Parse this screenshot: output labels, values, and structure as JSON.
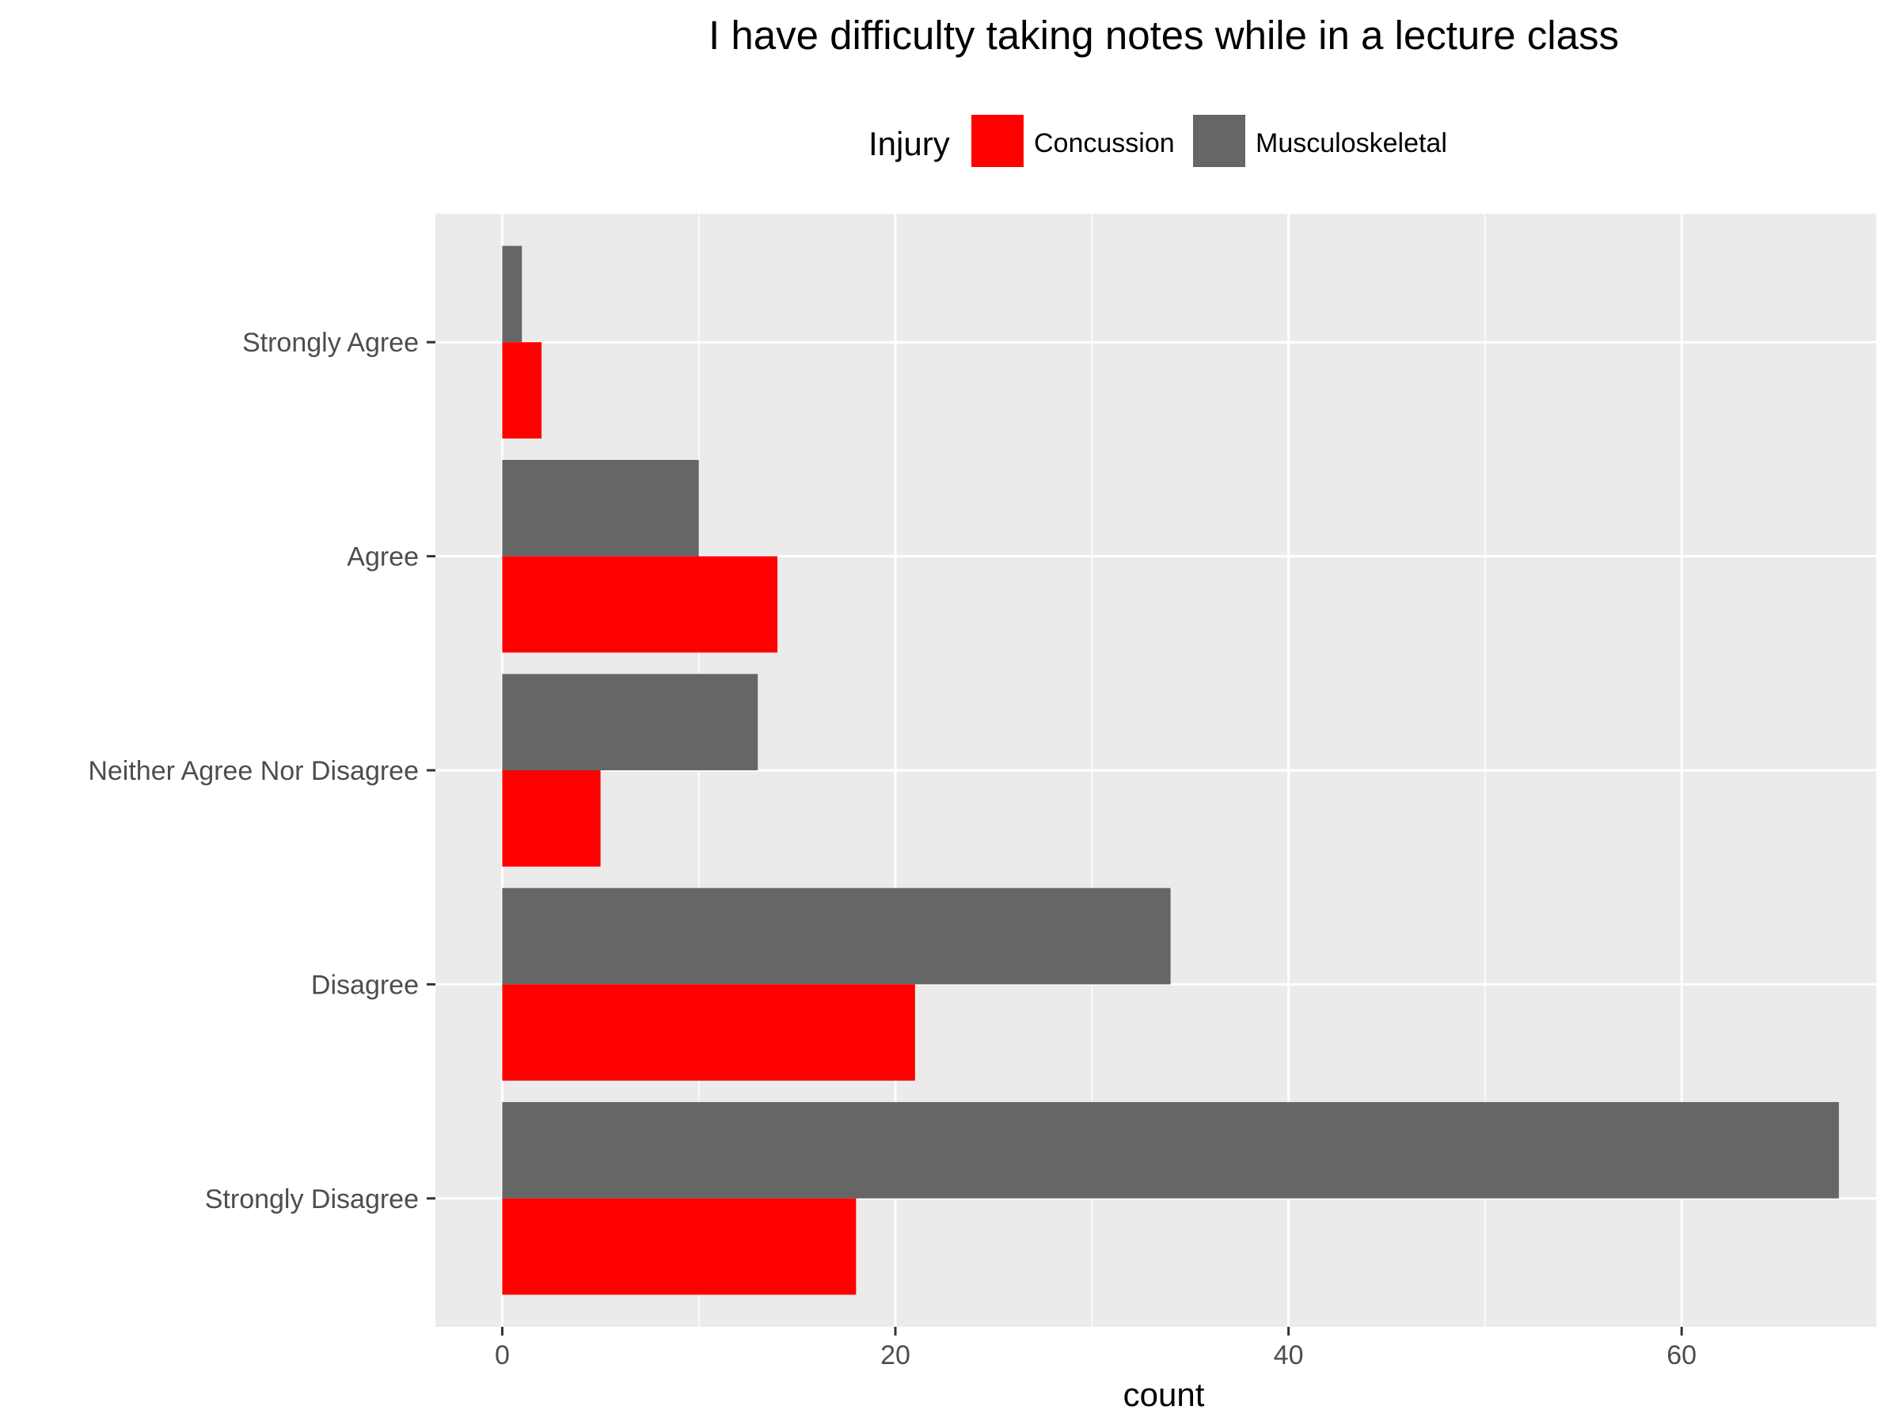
{
  "chart_data": {
    "type": "bar",
    "orientation": "horizontal",
    "title": "I have difficulty taking notes while in a lecture class",
    "xlabel": "count",
    "ylabel": "",
    "xlim": [
      -3.4,
      69.9
    ],
    "x_ticks": [
      0,
      20,
      40,
      60
    ],
    "grid": true,
    "legend": {
      "title": "Injury",
      "position": "top"
    },
    "categories": [
      "Strongly Agree",
      "Agree",
      "Neither Agree Nor Disagree",
      "Disagree",
      "Strongly Disagree"
    ],
    "series": [
      {
        "name": "Concussion",
        "color": "#ff0000",
        "values": [
          2,
          14,
          5,
          21,
          18
        ]
      },
      {
        "name": "Musculoskeletal",
        "color": "#666666",
        "values": [
          1,
          10,
          13,
          34,
          68
        ]
      }
    ],
    "panel_background": "#ebebeb",
    "gridline_color": "#ffffff"
  }
}
